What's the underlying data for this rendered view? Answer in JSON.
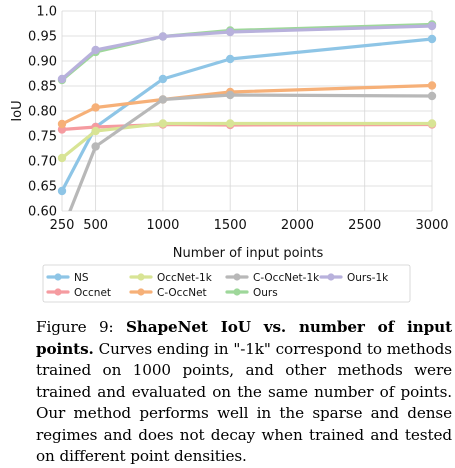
{
  "chart_data": {
    "type": "line",
    "title": "",
    "xlabel": "Number of input points",
    "ylabel": "IoU",
    "x": [
      250,
      500,
      1000,
      1500,
      3000
    ],
    "xticks": [
      "250",
      "500",
      "1000",
      "1500",
      "2000",
      "2500",
      "3000"
    ],
    "xtick_values": [
      250,
      500,
      1000,
      1500,
      2000,
      2500,
      3000
    ],
    "yticks": [
      "0.60",
      "0.65",
      "0.70",
      "0.75",
      "0.80",
      "0.85",
      "0.90",
      "0.95",
      "1.0"
    ],
    "ytick_values": [
      0.6,
      0.65,
      0.7,
      0.75,
      0.8,
      0.85,
      0.9,
      0.95,
      1.0
    ],
    "xlim": [
      250,
      3000
    ],
    "ylim": [
      0.6,
      1.0
    ],
    "grid": true,
    "legend_position": "below",
    "series": [
      {
        "name": "NS",
        "color": "#8ec5e6",
        "values": [
          0.64,
          0.768,
          0.864,
          0.904,
          0.944
        ]
      },
      {
        "name": "Occnet",
        "color": "#f59ba0",
        "values": [
          0.763,
          0.768,
          0.773,
          0.772,
          0.773
        ]
      },
      {
        "name": "OccNet-1k",
        "color": "#d8e495",
        "values": [
          0.706,
          0.76,
          0.775,
          0.775,
          0.775
        ]
      },
      {
        "name": "C-OccNet",
        "color": "#f6b078",
        "values": [
          0.774,
          0.807,
          0.823,
          0.838,
          0.851
        ]
      },
      {
        "name": "C-OccNet-1k",
        "color": "#b8b8b8",
        "values": [
          0.56,
          0.729,
          0.823,
          0.832,
          0.83
        ]
      },
      {
        "name": "Ours",
        "color": "#9ed79a",
        "values": [
          0.862,
          0.918,
          0.949,
          0.961,
          0.973
        ]
      },
      {
        "name": "Ours-1k",
        "color": "#b8b1dc",
        "values": [
          0.864,
          0.922,
          0.949,
          0.958,
          0.97
        ]
      }
    ]
  },
  "caption": {
    "figure_label": "Figure 9:",
    "bold_title": "ShapeNet IoU vs.  number of input points.",
    "body": "Curves ending in \"-1k\" correspond to methods trained on 1000 points, and other methods were trained and evaluated on the same number of points. Our method performs well in the sparse and dense regimes and does not decay when trained and tested on different point densities."
  }
}
